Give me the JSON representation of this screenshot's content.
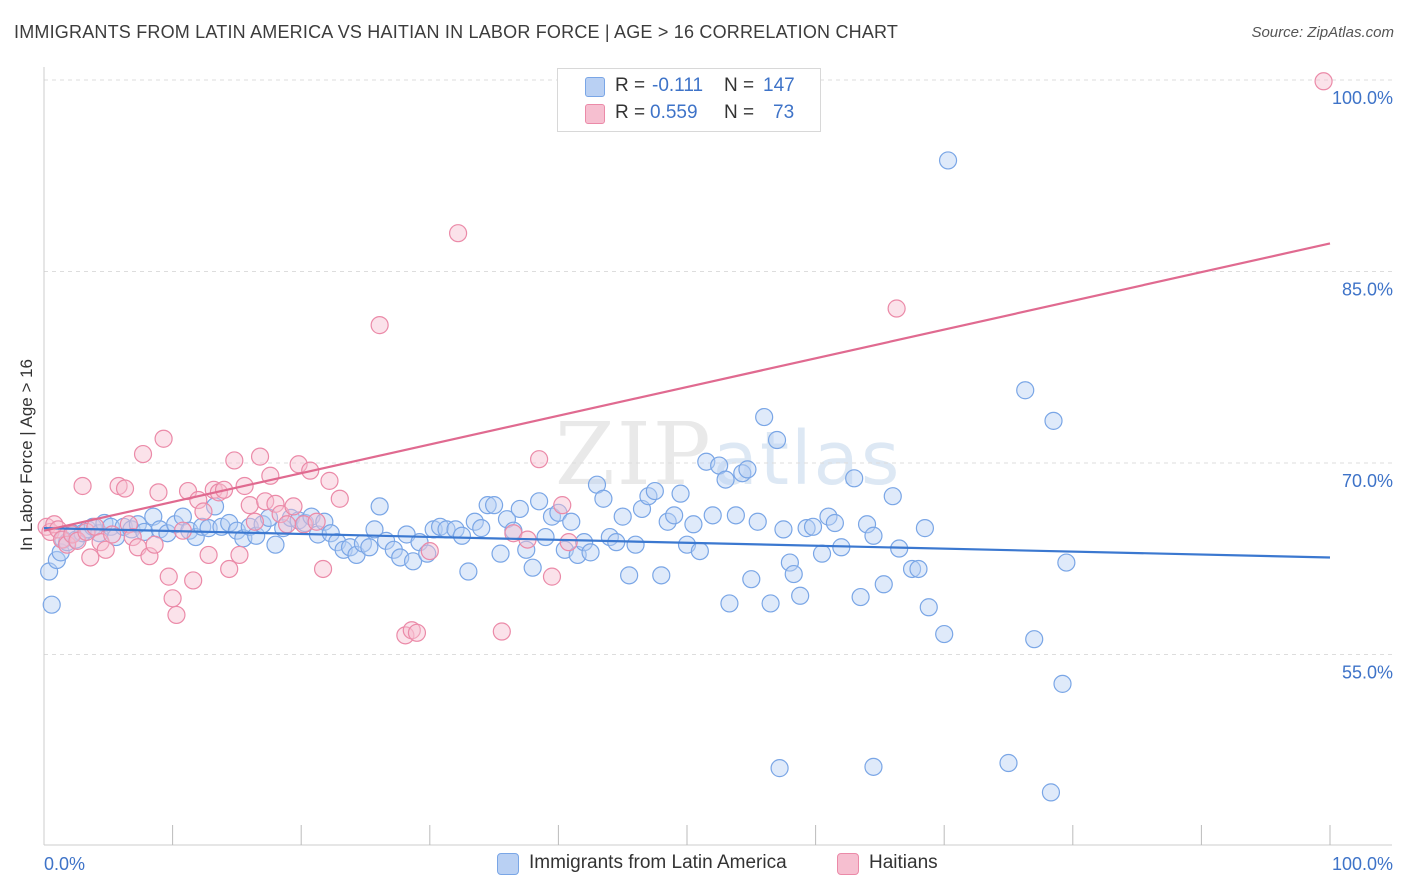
{
  "header": {
    "title": "IMMIGRANTS FROM LATIN AMERICA VS HAITIAN IN LABOR FORCE | AGE > 16 CORRELATION CHART",
    "source": "Source: ZipAtlas.com"
  },
  "watermark": {
    "zip": "ZIP",
    "atlas": "atlas"
  },
  "legend": {
    "r_label": "R =",
    "n_label": "N =",
    "series1": {
      "r": "-0.111",
      "n": "147"
    },
    "series2": {
      "r": "0.559",
      "n": "73"
    }
  },
  "chart_data": {
    "type": "scatter",
    "title": "IMMIGRANTS FROM LATIN AMERICA VS HAITIAN IN LABOR FORCE | AGE > 16 CORRELATION CHART",
    "xlabel": "",
    "ylabel": "In Labor Force | Age > 16",
    "xlim": [
      0,
      100
    ],
    "ylim": [
      40,
      102
    ],
    "x_tick_labels": [
      {
        "value": 0,
        "label": "0.0%"
      },
      {
        "value": 100,
        "label": "100.0%"
      }
    ],
    "y_tick_labels": [
      {
        "value": 55,
        "label": "55.0%"
      },
      {
        "value": 70,
        "label": "70.0%"
      },
      {
        "value": 85,
        "label": "85.0%"
      },
      {
        "value": 100,
        "label": "100.0%"
      }
    ],
    "grid": true,
    "legend_position": "top-center",
    "series": [
      {
        "name": "Immigrants from Latin America",
        "color": "#7aa6e6",
        "fill": "#b9d0f3",
        "trend": {
          "x": [
            0,
            100
          ],
          "y": [
            64.9,
            62.6
          ],
          "color": "#3b78d0"
        },
        "points": [
          [
            0.4,
            61.5
          ],
          [
            0.6,
            58.9
          ],
          [
            1.0,
            62.4
          ],
          [
            1.3,
            63.0
          ],
          [
            1.5,
            64.0
          ],
          [
            1.8,
            63.8
          ],
          [
            2.2,
            64.5
          ],
          [
            2.5,
            64.0
          ],
          [
            3.0,
            64.5
          ],
          [
            3.4,
            64.8
          ],
          [
            3.8,
            65.0
          ],
          [
            4.3,
            64.5
          ],
          [
            4.7,
            65.3
          ],
          [
            5.2,
            65.0
          ],
          [
            5.6,
            64.2
          ],
          [
            6.2,
            65.0
          ],
          [
            6.8,
            64.8
          ],
          [
            7.3,
            65.2
          ],
          [
            7.8,
            64.6
          ],
          [
            8.5,
            65.8
          ],
          [
            9.0,
            64.8
          ],
          [
            9.6,
            64.5
          ],
          [
            10.2,
            65.2
          ],
          [
            10.8,
            65.8
          ],
          [
            11.3,
            64.7
          ],
          [
            11.8,
            64.2
          ],
          [
            12.3,
            65.0
          ],
          [
            12.8,
            64.9
          ],
          [
            13.3,
            66.6
          ],
          [
            13.8,
            65.0
          ],
          [
            14.4,
            65.3
          ],
          [
            15.0,
            64.7
          ],
          [
            15.5,
            64.1
          ],
          [
            16.0,
            65.0
          ],
          [
            16.5,
            64.3
          ],
          [
            17.0,
            65.2
          ],
          [
            17.5,
            65.7
          ],
          [
            18.0,
            63.6
          ],
          [
            18.6,
            64.9
          ],
          [
            19.2,
            65.7
          ],
          [
            19.8,
            65.5
          ],
          [
            20.3,
            65.3
          ],
          [
            20.8,
            65.8
          ],
          [
            21.3,
            64.4
          ],
          [
            21.8,
            65.4
          ],
          [
            22.3,
            64.5
          ],
          [
            22.8,
            63.8
          ],
          [
            23.3,
            63.2
          ],
          [
            23.8,
            63.4
          ],
          [
            24.3,
            62.8
          ],
          [
            24.8,
            63.7
          ],
          [
            25.3,
            63.4
          ],
          [
            25.7,
            64.8
          ],
          [
            26.1,
            66.6
          ],
          [
            26.6,
            63.9
          ],
          [
            27.2,
            63.2
          ],
          [
            27.7,
            62.6
          ],
          [
            28.2,
            64.4
          ],
          [
            28.7,
            62.3
          ],
          [
            29.2,
            63.8
          ],
          [
            29.8,
            62.9
          ],
          [
            30.3,
            64.8
          ],
          [
            30.8,
            65.0
          ],
          [
            31.3,
            64.8
          ],
          [
            32.0,
            64.8
          ],
          [
            32.5,
            64.3
          ],
          [
            33.0,
            61.5
          ],
          [
            33.5,
            65.4
          ],
          [
            34.0,
            64.9
          ],
          [
            34.5,
            66.7
          ],
          [
            35.0,
            66.7
          ],
          [
            35.5,
            62.9
          ],
          [
            36.0,
            65.6
          ],
          [
            36.5,
            64.7
          ],
          [
            37.0,
            66.4
          ],
          [
            37.5,
            63.2
          ],
          [
            38.0,
            61.8
          ],
          [
            38.5,
            67.0
          ],
          [
            39.0,
            64.2
          ],
          [
            39.5,
            65.8
          ],
          [
            40.0,
            66.1
          ],
          [
            40.5,
            63.2
          ],
          [
            41.0,
            65.4
          ],
          [
            41.5,
            62.8
          ],
          [
            42.0,
            63.8
          ],
          [
            42.5,
            63.0
          ],
          [
            43.0,
            68.3
          ],
          [
            43.5,
            67.2
          ],
          [
            44.0,
            64.2
          ],
          [
            44.5,
            63.8
          ],
          [
            45.0,
            65.8
          ],
          [
            45.5,
            61.2
          ],
          [
            46.0,
            63.6
          ],
          [
            46.5,
            66.4
          ],
          [
            47.0,
            67.4
          ],
          [
            47.5,
            67.8
          ],
          [
            48.0,
            61.2
          ],
          [
            48.5,
            65.4
          ],
          [
            49.0,
            65.9
          ],
          [
            49.5,
            67.6
          ],
          [
            50.0,
            63.6
          ],
          [
            50.5,
            65.2
          ],
          [
            51.0,
            63.1
          ],
          [
            51.5,
            70.1
          ],
          [
            52.0,
            65.9
          ],
          [
            52.5,
            69.8
          ],
          [
            53.0,
            68.7
          ],
          [
            53.3,
            59.0
          ],
          [
            53.8,
            65.9
          ],
          [
            54.3,
            69.2
          ],
          [
            54.7,
            69.5
          ],
          [
            55.0,
            60.9
          ],
          [
            55.5,
            65.4
          ],
          [
            56.0,
            73.6
          ],
          [
            56.5,
            59.0
          ],
          [
            57.0,
            71.8
          ],
          [
            57.5,
            64.8
          ],
          [
            58.0,
            62.2
          ],
          [
            58.3,
            61.3
          ],
          [
            58.8,
            59.6
          ],
          [
            59.3,
            64.9
          ],
          [
            59.8,
            65.0
          ],
          [
            60.5,
            62.9
          ],
          [
            61.0,
            65.8
          ],
          [
            61.5,
            65.3
          ],
          [
            62.0,
            63.4
          ],
          [
            63.0,
            68.8
          ],
          [
            63.5,
            59.5
          ],
          [
            64.0,
            65.2
          ],
          [
            64.5,
            64.3
          ],
          [
            65.3,
            60.5
          ],
          [
            66.0,
            67.4
          ],
          [
            66.5,
            63.3
          ],
          [
            67.5,
            61.7
          ],
          [
            68.0,
            61.7
          ],
          [
            68.5,
            64.9
          ],
          [
            68.8,
            58.7
          ],
          [
            70.0,
            56.6
          ],
          [
            70.3,
            93.7
          ],
          [
            76.3,
            75.7
          ],
          [
            77.0,
            56.2
          ],
          [
            78.5,
            73.3
          ],
          [
            79.5,
            62.2
          ],
          [
            79.2,
            52.7
          ],
          [
            75.0,
            46.5
          ],
          [
            64.5,
            46.2
          ],
          [
            57.2,
            46.1
          ],
          [
            78.3,
            44.2
          ]
        ]
      },
      {
        "name": "Haitians",
        "color": "#eb8aa8",
        "fill": "#f6bfd0",
        "trend": {
          "x": [
            0,
            100
          ],
          "y": [
            64.7,
            87.2
          ],
          "color": "#e06a90"
        },
        "points": [
          [
            0.2,
            65.0
          ],
          [
            0.5,
            64.6
          ],
          [
            0.8,
            65.2
          ],
          [
            1.1,
            64.8
          ],
          [
            1.4,
            64.0
          ],
          [
            1.8,
            63.6
          ],
          [
            2.2,
            64.4
          ],
          [
            2.6,
            63.9
          ],
          [
            3.0,
            68.2
          ],
          [
            3.3,
            64.6
          ],
          [
            3.6,
            62.6
          ],
          [
            4.0,
            65.0
          ],
          [
            4.4,
            63.8
          ],
          [
            4.8,
            63.2
          ],
          [
            5.3,
            64.4
          ],
          [
            5.8,
            68.2
          ],
          [
            6.3,
            68.0
          ],
          [
            6.6,
            65.2
          ],
          [
            6.9,
            64.2
          ],
          [
            7.3,
            63.4
          ],
          [
            7.7,
            70.7
          ],
          [
            8.2,
            62.7
          ],
          [
            8.6,
            63.6
          ],
          [
            8.9,
            67.7
          ],
          [
            9.3,
            71.9
          ],
          [
            9.7,
            61.1
          ],
          [
            10.0,
            59.4
          ],
          [
            10.3,
            58.1
          ],
          [
            10.8,
            64.7
          ],
          [
            11.2,
            67.8
          ],
          [
            11.6,
            60.8
          ],
          [
            12.0,
            67.1
          ],
          [
            12.4,
            66.2
          ],
          [
            12.8,
            62.8
          ],
          [
            13.2,
            67.9
          ],
          [
            13.6,
            67.7
          ],
          [
            14.0,
            67.9
          ],
          [
            14.4,
            61.7
          ],
          [
            14.8,
            70.2
          ],
          [
            15.2,
            62.8
          ],
          [
            15.6,
            68.2
          ],
          [
            16.0,
            66.7
          ],
          [
            16.4,
            65.4
          ],
          [
            16.8,
            70.5
          ],
          [
            17.2,
            67.0
          ],
          [
            17.6,
            69.0
          ],
          [
            18.0,
            66.8
          ],
          [
            18.4,
            66.0
          ],
          [
            18.9,
            65.2
          ],
          [
            19.4,
            66.6
          ],
          [
            19.8,
            69.9
          ],
          [
            20.2,
            65.2
          ],
          [
            20.7,
            69.4
          ],
          [
            21.2,
            65.4
          ],
          [
            21.7,
            61.7
          ],
          [
            22.2,
            68.6
          ],
          [
            23.0,
            67.2
          ],
          [
            26.1,
            80.8
          ],
          [
            28.1,
            56.5
          ],
          [
            28.6,
            56.9
          ],
          [
            29.0,
            56.7
          ],
          [
            30.0,
            63.1
          ],
          [
            32.2,
            88.0
          ],
          [
            35.6,
            56.8
          ],
          [
            36.5,
            64.5
          ],
          [
            37.6,
            64.0
          ],
          [
            38.5,
            70.3
          ],
          [
            39.5,
            61.1
          ],
          [
            40.3,
            66.7
          ],
          [
            40.8,
            63.8
          ],
          [
            66.3,
            82.1
          ],
          [
            99.5,
            99.9
          ]
        ]
      }
    ]
  },
  "bottom_legend": {
    "series1": "Immigrants from Latin America",
    "series2": "Haitians"
  }
}
